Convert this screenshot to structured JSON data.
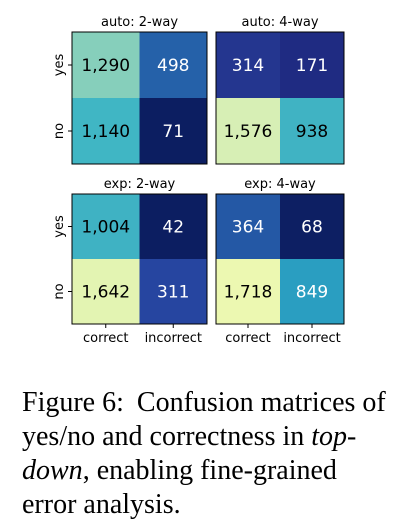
{
  "chart_data": [
    {
      "type": "heatmap",
      "title": "auto: 2-way",
      "rows": [
        "yes",
        "no"
      ],
      "cols": [
        "correct",
        "incorrect"
      ],
      "values": [
        [
          1290,
          498
        ],
        [
          1140,
          71
        ]
      ],
      "labels": [
        [
          "1,290",
          "498"
        ],
        [
          "1,140",
          "71"
        ]
      ],
      "colors": [
        [
          "#86cfbb",
          "#2561a9"
        ],
        [
          "#40b6c4",
          "#0c1e61"
        ]
      ]
    },
    {
      "type": "heatmap",
      "title": "auto: 4-way",
      "rows": [
        "yes",
        "no"
      ],
      "cols": [
        "correct",
        "incorrect"
      ],
      "values": [
        [
          314,
          171
        ],
        [
          1576,
          938
        ]
      ],
      "labels": [
        [
          "314",
          "171"
        ],
        [
          "1,576",
          "938"
        ]
      ],
      "colors": [
        [
          "#24368f",
          "#1f2b82"
        ],
        [
          "#d7efb5",
          "#40b3c3"
        ]
      ]
    },
    {
      "type": "heatmap",
      "title": "exp: 2-way",
      "rows": [
        "yes",
        "no"
      ],
      "cols": [
        "correct",
        "incorrect"
      ],
      "values": [
        [
          1004,
          42
        ],
        [
          1642,
          311
        ]
      ],
      "labels": [
        [
          "1,004",
          "42"
        ],
        [
          "1,642",
          "311"
        ]
      ],
      "colors": [
        [
          "#3fb2c3",
          "#0c1e61"
        ],
        [
          "#e3f4b2",
          "#2645a0"
        ]
      ]
    },
    {
      "type": "heatmap",
      "title": "exp: 4-way",
      "rows": [
        "yes",
        "no"
      ],
      "cols": [
        "correct",
        "incorrect"
      ],
      "values": [
        [
          364,
          68
        ],
        [
          1718,
          849
        ]
      ],
      "labels": [
        [
          "364",
          "68"
        ],
        [
          "1,718",
          "849"
        ]
      ],
      "colors": [
        [
          "#2458a5",
          "#0d1f63"
        ],
        [
          "#ecf8b1",
          "#2a9ec1"
        ]
      ]
    }
  ],
  "caption": {
    "label": "Figure 6:",
    "before": "Confusion matrices of yes/no and correctness in ",
    "emph": "top-down",
    "after": ", enabling fine-grained error analysis."
  }
}
